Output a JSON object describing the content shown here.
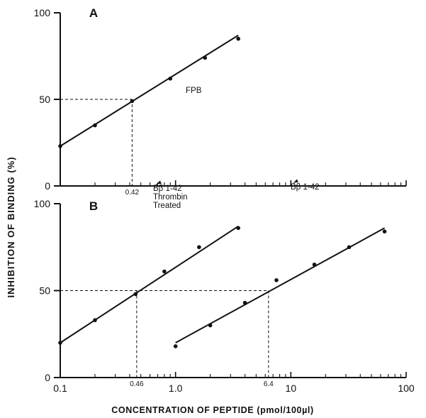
{
  "chart_data": {
    "type": "scatter",
    "ylabel": "INHIBITION OF BINDING (%)",
    "xlabel": "CONCENTRATION OF PEPTIDE (pmol/100µl)",
    "x_scale": "log",
    "xlim": [
      0.1,
      100
    ],
    "x_tick_labels": [
      "0.1",
      "1.0",
      "10",
      "100"
    ],
    "panels": [
      {
        "label": "A",
        "ylim": [
          0,
          100
        ],
        "y_tick_labels": [
          "0",
          "50",
          "100"
        ],
        "series": [
          {
            "name": "FPB",
            "points": [
              [
                0.1,
                23
              ],
              [
                0.2,
                35
              ],
              [
                0.42,
                49
              ],
              [
                0.9,
                62
              ],
              [
                1.8,
                74
              ],
              [
                3.5,
                85
              ]
            ],
            "fit_line": [
              [
                0.1,
                23
              ],
              [
                3.5,
                87
              ]
            ]
          }
        ],
        "reference_lines": [
          {
            "y": 50,
            "x": 0.42,
            "x_label": "0.42"
          }
        ]
      },
      {
        "label": "B",
        "ylim": [
          0,
          100
        ],
        "y_tick_labels": [
          "0",
          "50",
          "100"
        ],
        "series": [
          {
            "name": "Bβ 1-42 Thrombin Treated",
            "label_lines": [
              "Bβ 1-42",
              "Thrombin",
              "Treated"
            ],
            "points": [
              [
                0.1,
                20
              ],
              [
                0.2,
                33
              ],
              [
                0.45,
                48
              ],
              [
                0.8,
                61
              ],
              [
                1.6,
                75
              ],
              [
                3.5,
                86
              ]
            ],
            "fit_line": [
              [
                0.1,
                20
              ],
              [
                3.5,
                87
              ]
            ]
          },
          {
            "name": "Bβ 1-42",
            "label_lines": [
              "Bβ 1-42"
            ],
            "points": [
              [
                1.0,
                18
              ],
              [
                2.0,
                30
              ],
              [
                4.0,
                43
              ],
              [
                7.5,
                56
              ],
              [
                16,
                65
              ],
              [
                32,
                75
              ],
              [
                65,
                84
              ]
            ],
            "fit_line": [
              [
                1.0,
                20
              ],
              [
                65,
                86
              ]
            ]
          }
        ],
        "reference_lines": [
          {
            "y": 50,
            "x": 0.46,
            "x_label": "0.46"
          },
          {
            "y": 50,
            "x": 6.4,
            "x_label": "6.4"
          }
        ]
      }
    ]
  }
}
